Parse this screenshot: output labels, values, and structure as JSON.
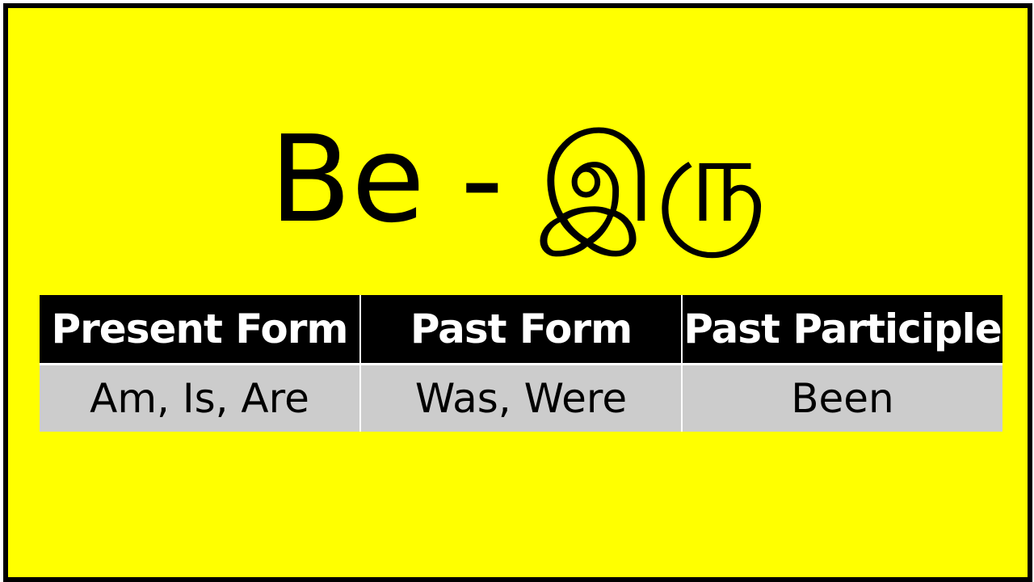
{
  "title": {
    "english": "Be",
    "separator": "-",
    "tamil": "இரு"
  },
  "table": {
    "headers": [
      "Present Form",
      "Past Form",
      "Past Participle"
    ],
    "row": [
      "Am, Is, Are",
      "Was, Were",
      "Been"
    ]
  },
  "colors": {
    "background": "#ffff00",
    "border": "#000000",
    "header_bg": "#000000",
    "header_text": "#ffffff",
    "row_bg": "#cccccc"
  }
}
